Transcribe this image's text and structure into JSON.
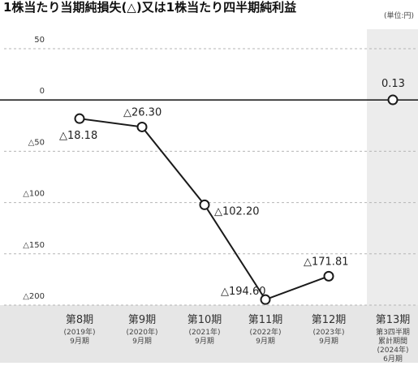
{
  "chart_data": {
    "type": "line",
    "title": "1株当たり当期純損失(△)又は1株当たり四半期純利益",
    "unit": "(単位:円)",
    "ylim": [
      -200,
      50
    ],
    "y_ticks": [
      {
        "value": 50,
        "label": "50"
      },
      {
        "value": 0,
        "label": "0"
      },
      {
        "value": -50,
        "label": "△50"
      },
      {
        "value": -100,
        "label": "△100"
      },
      {
        "value": -150,
        "label": "△150"
      },
      {
        "value": -200,
        "label": "△200"
      }
    ],
    "categories": [
      {
        "label": "第8期",
        "sub": [
          "(2019年)",
          "9月期"
        ]
      },
      {
        "label": "第9期",
        "sub": [
          "(2020年)",
          "9月期"
        ]
      },
      {
        "label": "第10期",
        "sub": [
          "(2021年)",
          "9月期"
        ]
      },
      {
        "label": "第11期",
        "sub": [
          "(2022年)",
          "9月期"
        ]
      },
      {
        "label": "第12期",
        "sub": [
          "(2023年)",
          "9月期"
        ]
      },
      {
        "label": "第13期",
        "sub": [
          "第3四半期",
          "累計期間",
          "(2024年)",
          "6月期"
        ]
      }
    ],
    "values": [
      -18.18,
      -26.3,
      -102.2,
      -194.6,
      -171.81,
      0.13
    ],
    "data_labels": [
      "△18.18",
      "△26.30",
      "△102.20",
      "△194.60",
      "△171.81",
      "0.13"
    ],
    "grid": true,
    "colors": {
      "line": "#1a1a1a",
      "grid": "#b5b5b5",
      "zero_line": "#222222",
      "highlight_band": "#ececec",
      "category_band": "#e6e6e6"
    }
  }
}
